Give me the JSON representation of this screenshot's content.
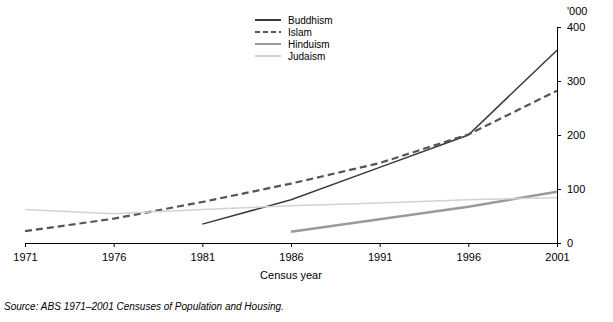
{
  "chart_data": {
    "type": "line",
    "x_label": "Census year",
    "y_label": "'000",
    "source": "Source: ABS 1971–2001 Censuses of Population and Housing.",
    "x": [
      1971,
      1976,
      1981,
      1986,
      1991,
      1996,
      2001
    ],
    "xlim": [
      1971,
      2001
    ],
    "xticks": [
      1971,
      1976,
      1981,
      1986,
      1991,
      1996,
      2001
    ],
    "ylim": [
      0,
      400
    ],
    "yticks": [
      0,
      100,
      200,
      300,
      400
    ],
    "grid": false,
    "legend": "top",
    "series": [
      {
        "name": "Buddhism",
        "color": "#3a3a3a",
        "line_style": "solid",
        "values": [
          null,
          null,
          35,
          80,
          140,
          200,
          357
        ]
      },
      {
        "name": "Islam",
        "color": "#555555",
        "line_style": "dashed",
        "values": [
          22,
          45,
          76,
          110,
          148,
          201,
          282
        ]
      },
      {
        "name": "Hinduism",
        "color": "#9a9a9a",
        "line_style": "solid",
        "values": [
          null,
          null,
          null,
          21,
          44,
          67,
          95
        ]
      },
      {
        "name": "Judaism",
        "color": "#d2d2d2",
        "line_style": "solid",
        "values": [
          62,
          54,
          62,
          69,
          74,
          80,
          84
        ]
      }
    ]
  }
}
